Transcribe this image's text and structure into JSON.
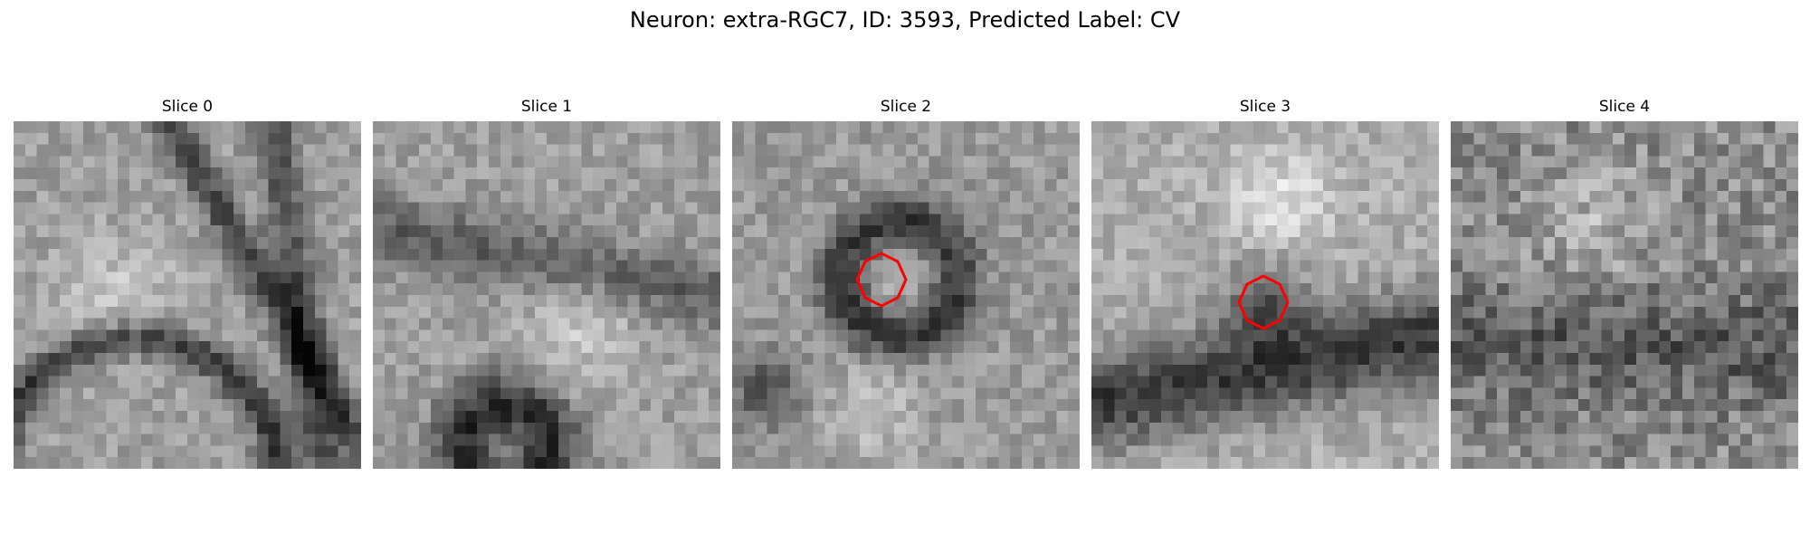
{
  "figure": {
    "title": "Neuron: extra-RGC7, ID: 3593, Predicted Label: CV"
  },
  "slices": [
    {
      "label": "Slice 0",
      "pattern": "ridges",
      "seed": 11,
      "marker": null
    },
    {
      "label": "Slice 1",
      "pattern": "arch",
      "seed": 23,
      "marker": null
    },
    {
      "label": "Slice 2",
      "pattern": "ring",
      "seed": 37,
      "marker": {
        "shape": "octagon",
        "color": "#ff0000"
      }
    },
    {
      "label": "Slice 3",
      "pattern": "band",
      "seed": 53,
      "marker": {
        "shape": "octagon",
        "color": "#ff0000"
      }
    },
    {
      "label": "Slice 4",
      "pattern": "noise",
      "seed": 71,
      "marker": null
    }
  ],
  "colors": {
    "marker": "#ff0000",
    "colormap": "gray"
  }
}
